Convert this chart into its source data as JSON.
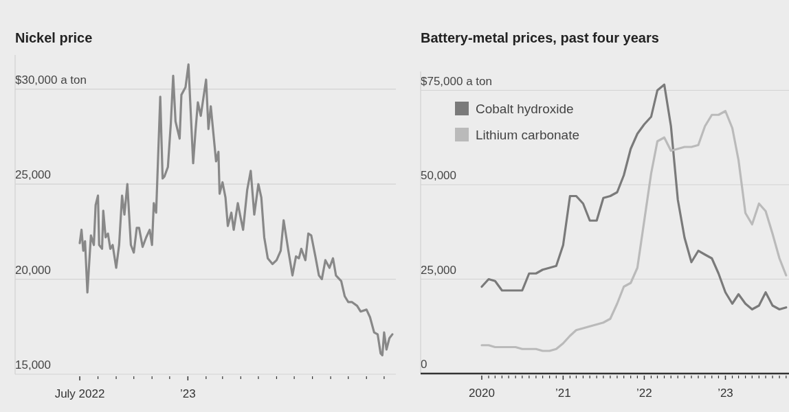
{
  "chart_data": [
    {
      "type": "line",
      "title": "Nickel price",
      "color": "#888888",
      "grid": "y",
      "xlim": [
        "2022-03-13",
        "2023-12-21"
      ],
      "ylim": [
        15000,
        31800
      ],
      "yticks": [
        {
          "value": 15000,
          "label": "15,000"
        },
        {
          "value": 20000,
          "label": "20,000"
        },
        {
          "value": 25000,
          "label": "25,000"
        },
        {
          "value": 30000,
          "label": "$30,000 a ton"
        }
      ],
      "xticks": [
        {
          "value": "2022-07",
          "label": "July 2022"
        },
        {
          "value": "2022-08",
          "label": null
        },
        {
          "value": "2022-09",
          "label": null
        },
        {
          "value": "2022-10",
          "label": null
        },
        {
          "value": "2022-11",
          "label": null
        },
        {
          "value": "2022-12",
          "label": null
        },
        {
          "value": "2023-01",
          "label": "’23"
        },
        {
          "value": "2023-02",
          "label": null
        },
        {
          "value": "2023-03",
          "label": null
        },
        {
          "value": "2023-04",
          "label": null
        },
        {
          "value": "2023-05",
          "label": null
        },
        {
          "value": "2023-06",
          "label": null
        },
        {
          "value": "2023-07",
          "label": null
        },
        {
          "value": "2023-08",
          "label": null
        },
        {
          "value": "2023-09",
          "label": null
        },
        {
          "value": "2023-10",
          "label": null
        },
        {
          "value": "2023-11",
          "label": null
        },
        {
          "value": "2023-12",
          "label": null
        }
      ],
      "x": [
        "2022-07-01",
        "2022-07-04",
        "2022-07-07",
        "2022-07-10",
        "2022-07-14",
        "2022-07-20",
        "2022-07-25",
        "2022-07-28",
        "2022-08-01",
        "2022-08-03",
        "2022-08-08",
        "2022-08-10",
        "2022-08-14",
        "2022-08-18",
        "2022-08-22",
        "2022-08-26",
        "2022-09-01",
        "2022-09-06",
        "2022-09-11",
        "2022-09-15",
        "2022-09-20",
        "2022-09-26",
        "2022-10-01",
        "2022-10-06",
        "2022-10-10",
        "2022-10-16",
        "2022-10-22",
        "2022-10-28",
        "2022-11-01",
        "2022-11-04",
        "2022-11-08",
        "2022-11-15",
        "2022-11-19",
        "2022-11-22",
        "2022-11-28",
        "2022-12-03",
        "2022-12-07",
        "2022-12-11",
        "2022-12-18",
        "2022-12-21",
        "2022-12-28",
        "2023-01-02",
        "2023-01-06",
        "2023-01-10",
        "2023-01-14",
        "2023-01-18",
        "2023-01-23",
        "2023-02-01",
        "2023-02-05",
        "2023-02-09",
        "2023-02-18",
        "2023-02-22",
        "2023-02-24",
        "2023-03-01",
        "2023-03-06",
        "2023-03-10",
        "2023-03-16",
        "2023-03-20",
        "2023-03-27",
        "2023-04-01",
        "2023-04-05",
        "2023-04-12",
        "2023-04-18",
        "2023-04-24",
        "2023-05-01",
        "2023-05-06",
        "2023-05-11",
        "2023-05-17",
        "2023-05-25",
        "2023-06-01",
        "2023-06-08",
        "2023-06-13",
        "2023-06-21",
        "2023-06-28",
        "2023-07-04",
        "2023-07-09",
        "2023-07-13",
        "2023-07-20",
        "2023-07-25",
        "2023-07-30",
        "2023-08-06",
        "2023-08-12",
        "2023-08-17",
        "2023-08-23",
        "2023-08-30",
        "2023-09-05",
        "2023-09-10",
        "2023-09-19",
        "2023-09-25",
        "2023-10-01",
        "2023-10-07",
        "2023-10-16",
        "2023-10-22",
        "2023-11-01",
        "2023-11-07",
        "2023-11-14",
        "2023-11-20",
        "2023-11-25",
        "2023-11-28",
        "2023-12-01",
        "2023-12-05",
        "2023-12-10",
        "2023-12-15"
      ],
      "values": [
        21900,
        22600,
        21500,
        22000,
        19300,
        22300,
        21800,
        23900,
        24400,
        21800,
        21600,
        23600,
        22200,
        22400,
        21600,
        21800,
        20600,
        21800,
        24400,
        23400,
        25000,
        21800,
        21400,
        22700,
        22700,
        21700,
        22200,
        22600,
        21800,
        24000,
        23500,
        29600,
        25300,
        25400,
        25900,
        28200,
        30700,
        28300,
        27400,
        29700,
        30100,
        31300,
        28700,
        26100,
        27800,
        29300,
        28600,
        30500,
        27900,
        29100,
        26200,
        26700,
        24500,
        25100,
        24300,
        22800,
        23500,
        22600,
        24000,
        23200,
        22600,
        24700,
        25700,
        23400,
        25000,
        24300,
        22200,
        21100,
        20800,
        21000,
        21500,
        23100,
        21500,
        20200,
        21200,
        21100,
        21600,
        21000,
        22400,
        22300,
        21200,
        20200,
        20000,
        21000,
        20600,
        21100,
        20200,
        19900,
        19100,
        18800,
        18800,
        18600,
        18300,
        18400,
        18000,
        17200,
        17100,
        16100,
        16000,
        17200,
        16300,
        16900,
        17100
      ]
    },
    {
      "type": "line",
      "title": "Battery-metal prices, past four years",
      "grid": "y",
      "legend": "top left",
      "xlim": [
        "2019-04-01",
        "2023-10-14"
      ],
      "ylim": [
        0,
        80000
      ],
      "yticks": [
        0,
        {
          "value": 25000,
          "label": "25,000"
        },
        {
          "value": 50000,
          "label": "50,000"
        },
        {
          "value": 75000,
          "label": "$75,000 a ton"
        }
      ],
      "xticks": [
        {
          "value": "2020-01",
          "label": "2020"
        },
        {
          "value": "2020-02",
          "label": null
        },
        {
          "value": "2020-03",
          "label": null
        },
        {
          "value": "2020-04",
          "label": null
        },
        {
          "value": "2020-05",
          "label": null
        },
        {
          "value": "2020-06",
          "label": null
        },
        {
          "value": "2020-07",
          "label": null
        },
        {
          "value": "2020-08",
          "label": null
        },
        {
          "value": "2020-09",
          "label": null
        },
        {
          "value": "2020-10",
          "label": null
        },
        {
          "value": "2020-11",
          "label": null
        },
        {
          "value": "2020-12",
          "label": null
        },
        {
          "value": "2021-01",
          "label": "’21"
        },
        {
          "value": "2021-02",
          "label": null
        },
        {
          "value": "2021-03",
          "label": null
        },
        {
          "value": "2021-04",
          "label": null
        },
        {
          "value": "2021-05",
          "label": null
        },
        {
          "value": "2021-06",
          "label": null
        },
        {
          "value": "2021-07",
          "label": null
        },
        {
          "value": "2021-08",
          "label": null
        },
        {
          "value": "2021-09",
          "label": null
        },
        {
          "value": "2021-10",
          "label": null
        },
        {
          "value": "2021-11",
          "label": null
        },
        {
          "value": "2021-12",
          "label": null
        },
        {
          "value": "2022-01",
          "label": "’22"
        },
        {
          "value": "2022-02",
          "label": null
        },
        {
          "value": "2022-03",
          "label": null
        },
        {
          "value": "2022-04",
          "label": null
        },
        {
          "value": "2022-05",
          "label": null
        },
        {
          "value": "2022-06",
          "label": null
        },
        {
          "value": "2022-07",
          "label": null
        },
        {
          "value": "2022-08",
          "label": null
        },
        {
          "value": "2022-09",
          "label": null
        },
        {
          "value": "2022-10",
          "label": null
        },
        {
          "value": "2022-11",
          "label": null
        },
        {
          "value": "2022-12",
          "label": null
        },
        {
          "value": "2023-01",
          "label": "’23"
        },
        {
          "value": "2023-02",
          "label": null
        },
        {
          "value": "2023-03",
          "label": null
        },
        {
          "value": "2023-04",
          "label": null
        },
        {
          "value": "2023-05",
          "label": null
        },
        {
          "value": "2023-06",
          "label": null
        },
        {
          "value": "2023-07",
          "label": null
        },
        {
          "value": "2023-08",
          "label": null
        },
        {
          "value": "2023-09",
          "label": null
        },
        {
          "value": "2023-10",
          "label": null
        }
      ],
      "x": [
        "2020-01",
        "2020-02",
        "2020-03",
        "2020-04",
        "2020-05",
        "2020-06",
        "2020-07",
        "2020-08",
        "2020-09",
        "2020-10",
        "2020-11",
        "2020-12",
        "2021-01",
        "2021-02",
        "2021-03",
        "2021-04",
        "2021-05",
        "2021-06",
        "2021-07",
        "2021-08",
        "2021-09",
        "2021-10",
        "2021-11",
        "2021-12",
        "2022-01",
        "2022-02",
        "2022-03",
        "2022-04",
        "2022-05",
        "2022-06",
        "2022-07",
        "2022-08",
        "2022-09",
        "2022-10",
        "2022-11",
        "2022-12",
        "2023-01",
        "2023-02",
        "2023-03",
        "2023-04",
        "2023-05",
        "2023-06",
        "2023-07",
        "2023-08",
        "2023-09",
        "2023-10"
      ],
      "series": [
        {
          "name": "Cobalt hydroxide",
          "color": "#7a7a7a",
          "values": [
            23000,
            25000,
            24500,
            22000,
            22000,
            22000,
            22000,
            26500,
            26500,
            27500,
            28000,
            28500,
            34000,
            47000,
            47000,
            45000,
            40500,
            40500,
            46500,
            47000,
            48000,
            52500,
            59500,
            63500,
            66000,
            68000,
            75000,
            76500,
            65500,
            46000,
            36000,
            29500,
            32500,
            31500,
            30500,
            26500,
            21500,
            18500,
            21000,
            18500,
            17000,
            18000,
            21500,
            18000,
            17000,
            17500
          ]
        },
        {
          "name": "Lithium carbonate",
          "color": "#bababa",
          "values": [
            7500,
            7500,
            7000,
            7000,
            7000,
            7000,
            6500,
            6500,
            6500,
            6000,
            6000,
            6500,
            8000,
            10000,
            11500,
            12000,
            12500,
            13000,
            13500,
            14500,
            18500,
            23000,
            24000,
            28000,
            40500,
            53000,
            61500,
            62500,
            59000,
            59500,
            60000,
            60000,
            60500,
            65500,
            68500,
            68500,
            69500,
            65000,
            56500,
            42500,
            39500,
            45000,
            43000,
            37000,
            30500,
            26000
          ]
        }
      ]
    }
  ]
}
